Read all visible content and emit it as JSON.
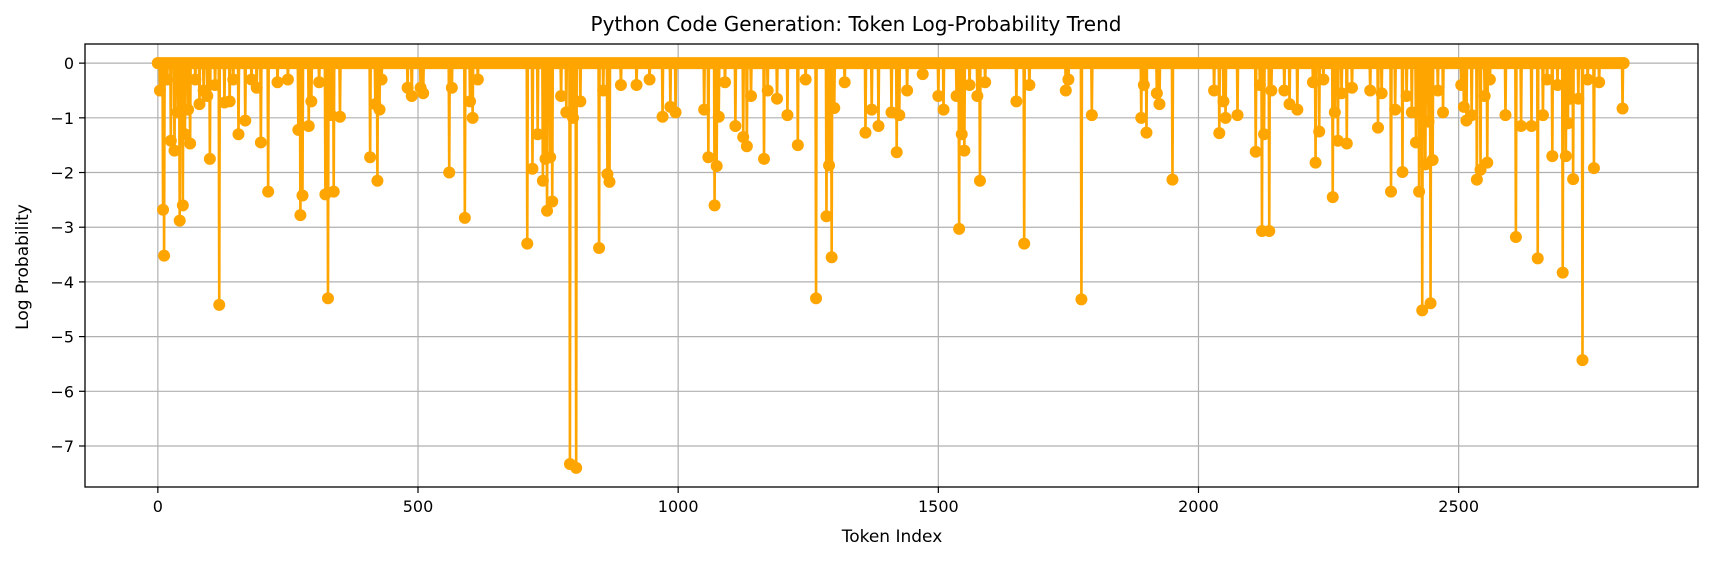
{
  "chart_data": {
    "type": "line",
    "title": "Python Code Generation: Token Log-Probability Trend",
    "xlabel": "Token Index",
    "ylabel": "Log Probability",
    "xlim": [
      -140,
      2960
    ],
    "ylim": [
      -7.75,
      0.35
    ],
    "xticks": [
      0,
      500,
      1000,
      1500,
      2000,
      2500
    ],
    "yticks": [
      0,
      -1,
      -2,
      -3,
      -4,
      -5,
      -6,
      -7
    ],
    "grid": true,
    "legend": "none",
    "color": "#ffa500",
    "marker": "circle",
    "series": [
      {
        "x_start": 0,
        "x_end": 2817,
        "baseline": 0,
        "dips": [
          [
            4,
            -0.5
          ],
          [
            10,
            -2.68
          ],
          [
            12,
            -3.52
          ],
          [
            18,
            -0.3
          ],
          [
            25,
            -1.42
          ],
          [
            32,
            -1.6
          ],
          [
            38,
            -0.9
          ],
          [
            42,
            -2.88
          ],
          [
            48,
            -2.6
          ],
          [
            52,
            -1.3
          ],
          [
            58,
            -0.85
          ],
          [
            62,
            -1.47
          ],
          [
            72,
            -0.3
          ],
          [
            80,
            -0.75
          ],
          [
            88,
            -0.5
          ],
          [
            95,
            -0.6
          ],
          [
            100,
            -1.75
          ],
          [
            110,
            -0.4
          ],
          [
            118,
            -4.42
          ],
          [
            128,
            -0.72
          ],
          [
            138,
            -0.7
          ],
          [
            145,
            -0.3
          ],
          [
            155,
            -1.3
          ],
          [
            168,
            -1.05
          ],
          [
            180,
            -0.3
          ],
          [
            190,
            -0.45
          ],
          [
            198,
            -1.45
          ],
          [
            212,
            -2.35
          ],
          [
            230,
            -0.35
          ],
          [
            250,
            -0.3
          ],
          [
            270,
            -1.22
          ],
          [
            274,
            -2.78
          ],
          [
            278,
            -2.42
          ],
          [
            290,
            -1.15
          ],
          [
            295,
            -0.7
          ],
          [
            310,
            -0.35
          ],
          [
            322,
            -2.4
          ],
          [
            327,
            -4.3
          ],
          [
            333,
            -0.95
          ],
          [
            338,
            -2.35
          ],
          [
            350,
            -0.98
          ],
          [
            408,
            -1.72
          ],
          [
            418,
            -0.75
          ],
          [
            422,
            -2.15
          ],
          [
            426,
            -0.85
          ],
          [
            430,
            -0.3
          ],
          [
            480,
            -0.45
          ],
          [
            488,
            -0.6
          ],
          [
            505,
            -0.45
          ],
          [
            510,
            -0.55
          ],
          [
            560,
            -2.0
          ],
          [
            565,
            -0.45
          ],
          [
            590,
            -2.83
          ],
          [
            600,
            -0.7
          ],
          [
            605,
            -1.0
          ],
          [
            615,
            -0.3
          ],
          [
            710,
            -3.3
          ],
          [
            720,
            -1.93
          ],
          [
            730,
            -1.3
          ],
          [
            740,
            -2.15
          ],
          [
            745,
            -1.75
          ],
          [
            748,
            -2.7
          ],
          [
            754,
            -1.72
          ],
          [
            758,
            -2.53
          ],
          [
            775,
            -0.6
          ],
          [
            785,
            -0.9
          ],
          [
            792,
            -7.33
          ],
          [
            798,
            -1.0
          ],
          [
            804,
            -7.4
          ],
          [
            812,
            -0.7
          ],
          [
            848,
            -3.38
          ],
          [
            856,
            -0.5
          ],
          [
            864,
            -2.03
          ],
          [
            868,
            -2.17
          ],
          [
            890,
            -0.4
          ],
          [
            920,
            -0.4
          ],
          [
            945,
            -0.3
          ],
          [
            970,
            -0.98
          ],
          [
            985,
            -0.8
          ],
          [
            995,
            -0.9
          ],
          [
            1050,
            -0.85
          ],
          [
            1058,
            -1.72
          ],
          [
            1070,
            -2.6
          ],
          [
            1074,
            -1.88
          ],
          [
            1078,
            -0.98
          ],
          [
            1090,
            -0.35
          ],
          [
            1110,
            -1.15
          ],
          [
            1125,
            -1.35
          ],
          [
            1132,
            -1.52
          ],
          [
            1140,
            -0.6
          ],
          [
            1165,
            -1.75
          ],
          [
            1172,
            -0.5
          ],
          [
            1190,
            -0.65
          ],
          [
            1210,
            -0.95
          ],
          [
            1230,
            -1.5
          ],
          [
            1245,
            -0.3
          ],
          [
            1265,
            -4.3
          ],
          [
            1285,
            -2.8
          ],
          [
            1290,
            -1.87
          ],
          [
            1295,
            -3.55
          ],
          [
            1300,
            -0.82
          ],
          [
            1320,
            -0.35
          ],
          [
            1360,
            -1.27
          ],
          [
            1372,
            -0.85
          ],
          [
            1385,
            -1.15
          ],
          [
            1410,
            -0.9
          ],
          [
            1420,
            -1.63
          ],
          [
            1425,
            -0.95
          ],
          [
            1440,
            -0.5
          ],
          [
            1470,
            -0.2
          ],
          [
            1500,
            -0.6
          ],
          [
            1510,
            -0.85
          ],
          [
            1535,
            -0.6
          ],
          [
            1540,
            -3.03
          ],
          [
            1545,
            -1.3
          ],
          [
            1550,
            -1.6
          ],
          [
            1560,
            -0.4
          ],
          [
            1575,
            -0.6
          ],
          [
            1580,
            -2.15
          ],
          [
            1590,
            -0.35
          ],
          [
            1650,
            -0.7
          ],
          [
            1665,
            -3.3
          ],
          [
            1675,
            -0.4
          ],
          [
            1745,
            -0.5
          ],
          [
            1750,
            -0.3
          ],
          [
            1775,
            -4.32
          ],
          [
            1795,
            -0.95
          ],
          [
            1890,
            -1.0
          ],
          [
            1895,
            -0.4
          ],
          [
            1900,
            -1.27
          ],
          [
            1920,
            -0.55
          ],
          [
            1925,
            -0.75
          ],
          [
            1950,
            -2.13
          ],
          [
            2030,
            -0.5
          ],
          [
            2040,
            -1.28
          ],
          [
            2048,
            -0.7
          ],
          [
            2052,
            -1.0
          ],
          [
            2075,
            -0.95
          ],
          [
            2110,
            -1.62
          ],
          [
            2118,
            -0.4
          ],
          [
            2122,
            -3.07
          ],
          [
            2126,
            -1.3
          ],
          [
            2136,
            -3.07
          ],
          [
            2140,
            -0.5
          ],
          [
            2165,
            -0.5
          ],
          [
            2175,
            -0.75
          ],
          [
            2190,
            -0.85
          ],
          [
            2220,
            -0.35
          ],
          [
            2225,
            -1.82
          ],
          [
            2232,
            -1.25
          ],
          [
            2240,
            -0.3
          ],
          [
            2258,
            -2.45
          ],
          [
            2262,
            -0.9
          ],
          [
            2268,
            -1.42
          ],
          [
            2275,
            -0.55
          ],
          [
            2285,
            -1.47
          ],
          [
            2295,
            -0.45
          ],
          [
            2330,
            -0.5
          ],
          [
            2345,
            -1.18
          ],
          [
            2352,
            -0.55
          ],
          [
            2370,
            -2.35
          ],
          [
            2378,
            -0.85
          ],
          [
            2392,
            -1.99
          ],
          [
            2400,
            -0.6
          ],
          [
            2410,
            -0.9
          ],
          [
            2418,
            -1.45
          ],
          [
            2424,
            -2.35
          ],
          [
            2430,
            -4.52
          ],
          [
            2436,
            -1.85
          ],
          [
            2442,
            -1.07
          ],
          [
            2446,
            -4.39
          ],
          [
            2450,
            -1.77
          ],
          [
            2460,
            -0.5
          ],
          [
            2470,
            -0.9
          ],
          [
            2505,
            -0.4
          ],
          [
            2510,
            -0.8
          ],
          [
            2515,
            -1.05
          ],
          [
            2525,
            -0.95
          ],
          [
            2535,
            -2.13
          ],
          [
            2542,
            -1.95
          ],
          [
            2550,
            -0.6
          ],
          [
            2555,
            -1.82
          ],
          [
            2560,
            -0.3
          ],
          [
            2590,
            -0.95
          ],
          [
            2610,
            -3.18
          ],
          [
            2620,
            -1.15
          ],
          [
            2640,
            -1.15
          ],
          [
            2652,
            -3.57
          ],
          [
            2662,
            -0.95
          ],
          [
            2670,
            -0.3
          ],
          [
            2680,
            -1.7
          ],
          [
            2690,
            -0.4
          ],
          [
            2700,
            -3.83
          ],
          [
            2706,
            -1.7
          ],
          [
            2710,
            -1.1
          ],
          [
            2714,
            -0.65
          ],
          [
            2720,
            -2.12
          ],
          [
            2730,
            -0.65
          ],
          [
            2738,
            -5.43
          ],
          [
            2748,
            -0.3
          ],
          [
            2760,
            -1.92
          ],
          [
            2770,
            -0.35
          ],
          [
            2815,
            -0.83
          ]
        ]
      }
    ]
  }
}
